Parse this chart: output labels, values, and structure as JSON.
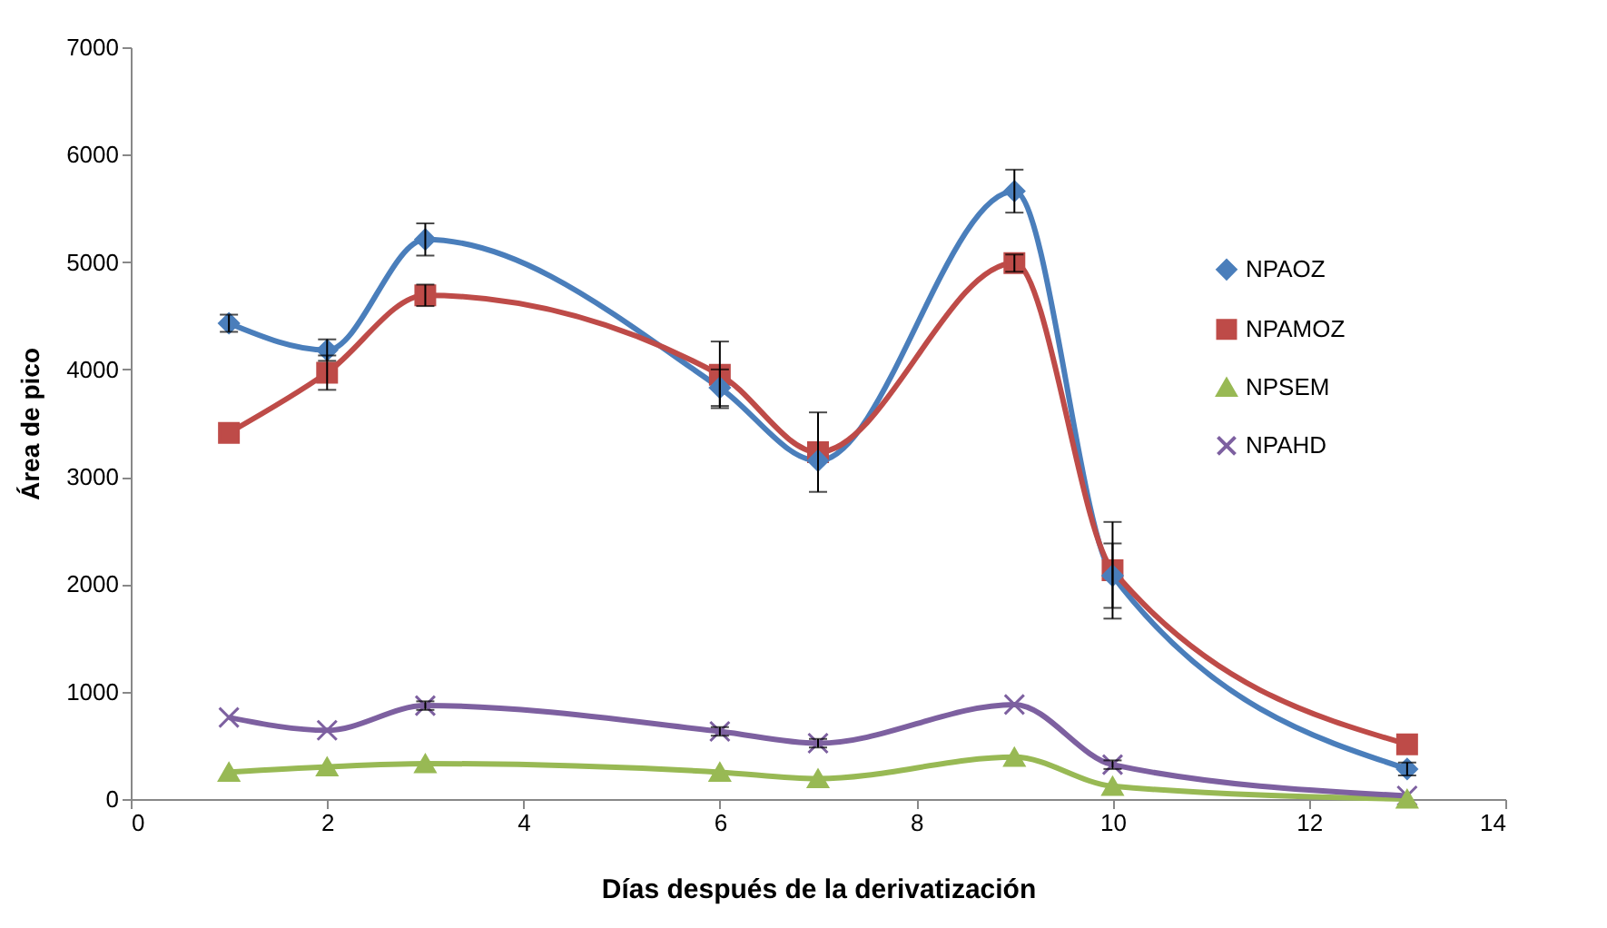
{
  "chart_data": {
    "type": "line",
    "xlabel": "Días después de la derivatización",
    "ylabel": "Área de pico",
    "x": [
      1,
      2,
      3,
      6,
      7,
      9,
      10,
      13
    ],
    "xlim": [
      0,
      14
    ],
    "xticks": [
      0,
      2,
      4,
      6,
      8,
      10,
      12,
      14
    ],
    "ylim": [
      0,
      7000
    ],
    "yticks": [
      0,
      1000,
      2000,
      3000,
      4000,
      5000,
      6000,
      7000
    ],
    "grid": false,
    "legend": "right",
    "series": [
      {
        "name": "NPAOZ",
        "color": "#4a7ebb",
        "marker": "diamond",
        "values": [
          4430,
          4180,
          5210,
          3830,
          3150,
          5660,
          2080,
          280
        ],
        "errors": [
          80,
          100,
          150,
          170,
          null,
          200,
          300,
          60
        ]
      },
      {
        "name": "NPAMOZ",
        "color": "#be4b48",
        "marker": "square",
        "values": [
          3410,
          3970,
          4690,
          3950,
          3230,
          4990,
          2130,
          510
        ],
        "errors": [
          null,
          160,
          100,
          310,
          370,
          80,
          450,
          null
        ]
      },
      {
        "name": "NPSEM",
        "color": "#98b954",
        "marker": "triangle",
        "values": [
          250,
          300,
          330,
          250,
          190,
          390,
          120,
          0
        ]
      },
      {
        "name": "NPAHD",
        "color": "#7d60a0",
        "marker": "cross",
        "values": [
          760,
          640,
          870,
          630,
          520,
          880,
          320,
          30
        ],
        "errors": [
          null,
          null,
          40,
          40,
          40,
          null,
          40,
          null
        ]
      }
    ]
  }
}
